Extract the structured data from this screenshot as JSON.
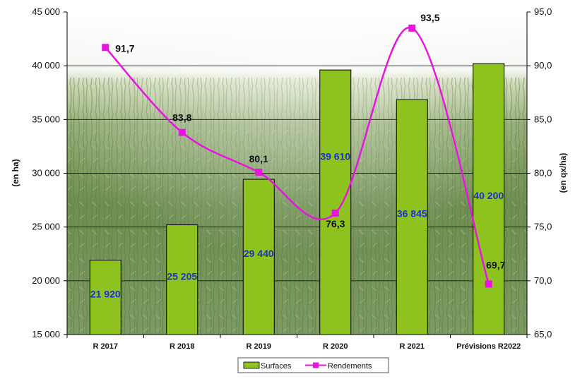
{
  "chart_data": {
    "type": "bar",
    "categories": [
      "R 2017",
      "R 2018",
      "R 2019",
      "R 2020",
      "R 2021",
      "Prévisions R2022"
    ],
    "series": [
      {
        "name": "Surfaces",
        "type": "bar",
        "axis": "left",
        "values": [
          21920,
          25205,
          29440,
          39610,
          36845,
          40200
        ],
        "labels": [
          "21 920",
          "25 205",
          "29 440",
          "39 610",
          "36 845",
          "40 200"
        ],
        "color": "#8dc21f"
      },
      {
        "name": "Rendements",
        "type": "line",
        "axis": "right",
        "smooth": true,
        "values": [
          91.7,
          83.8,
          80.1,
          76.3,
          93.5,
          69.7
        ],
        "labels": [
          "91,7",
          "83,8",
          "80,1",
          "76,3",
          "93,5",
          "69,7"
        ],
        "color": "#e815e0"
      }
    ],
    "ylabel_left": "(en ha)",
    "ylabel_right": "(en qx/ha)",
    "ylim_left": [
      15000,
      45000
    ],
    "ylim_right": [
      65,
      95
    ],
    "yticks_left": [
      "15 000",
      "20 000",
      "25 000",
      "30 000",
      "35 000",
      "40 000",
      "45 000"
    ],
    "yticks_right": [
      "65,0",
      "70,0",
      "75,0",
      "80,0",
      "85,0",
      "90,0",
      "95,0"
    ],
    "grid": true,
    "legend_position": "bottom-center",
    "background": "photo of a corn field"
  }
}
